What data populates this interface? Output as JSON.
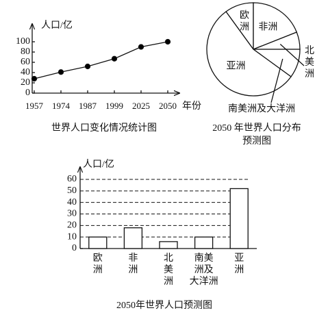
{
  "chart_data": [
    {
      "type": "line",
      "title": "世界人口变化情况统计图",
      "y_label": "人口/亿",
      "x_label": "年份",
      "categories": [
        "1957",
        "1974",
        "1987",
        "1999",
        "2025",
        "2050"
      ],
      "values": [
        28,
        41,
        52,
        67,
        90,
        100
      ],
      "ylim": [
        0,
        110
      ],
      "yticks": [
        0,
        20,
        40,
        60,
        80,
        100
      ],
      "color": "#000000"
    },
    {
      "type": "pie",
      "title": [
        "2050 年世界人口分布",
        "预测图"
      ],
      "categories": [
        "欧洲",
        "非洲",
        "北美洲",
        "南美洲及大洋洲",
        "亚洲"
      ],
      "values": [
        10,
        19,
        6,
        10,
        55
      ],
      "color": "#ffffff"
    },
    {
      "type": "bar",
      "title": "2050年世界人口预测图",
      "y_label": "人口/亿",
      "categories": [
        "欧洲",
        "非洲",
        "北美洲",
        "南美洲及大洋洲",
        "亚洲"
      ],
      "values": [
        10,
        18,
        6,
        10,
        52
      ],
      "ylim": [
        0,
        65
      ],
      "yticks": [
        0,
        10,
        20,
        30,
        40,
        50,
        60
      ],
      "grid": true,
      "color": "#ffffff"
    }
  ]
}
